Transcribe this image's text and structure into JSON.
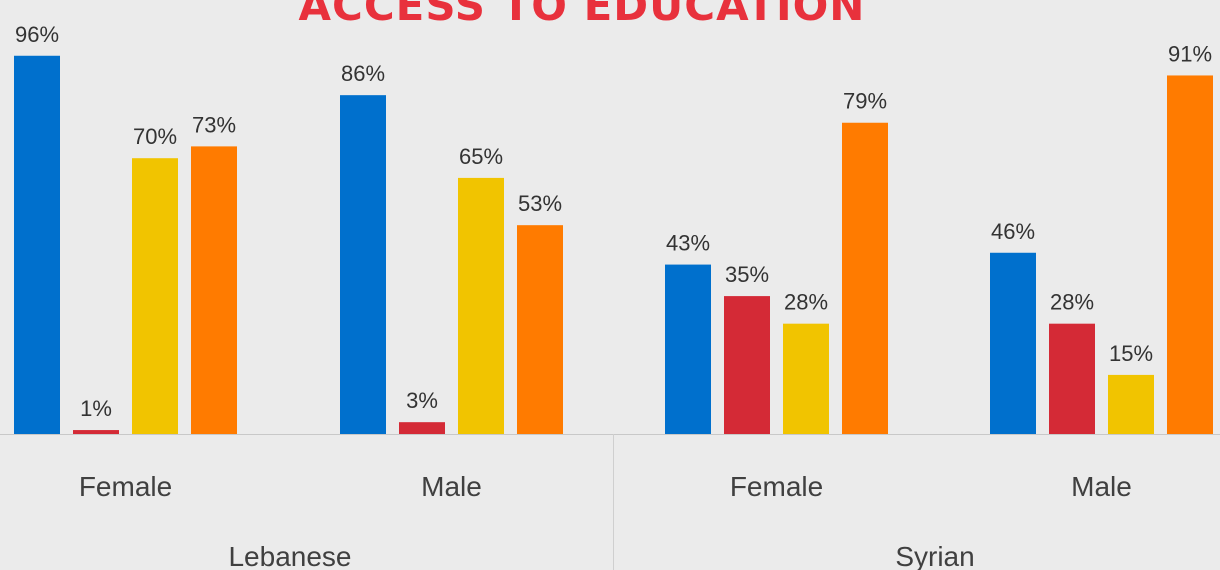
{
  "chart_data": {
    "type": "bar",
    "title": "ACCESS TO EDUCATION",
    "groups": [
      {
        "label": "Lebanese",
        "categories": [
          "Female",
          "Male"
        ]
      },
      {
        "label": "Syrian",
        "categories": [
          "Female",
          "Male"
        ]
      }
    ],
    "categories": [
      "Female",
      "Male",
      "Female",
      "Male"
    ],
    "series": [
      {
        "values": [
          96,
          86,
          43,
          46
        ],
        "color": "#0070cd"
      },
      {
        "values": [
          1,
          3,
          35,
          28
        ],
        "color": "#d42a36"
      },
      {
        "values": [
          70,
          65,
          28,
          15
        ],
        "color": "#f1c400"
      },
      {
        "values": [
          73,
          53,
          79,
          91
        ],
        "color": "#ff7b00"
      }
    ],
    "value_suffix": "%",
    "ylim": [
      0,
      100
    ],
    "legend": "none",
    "grid": false
  }
}
